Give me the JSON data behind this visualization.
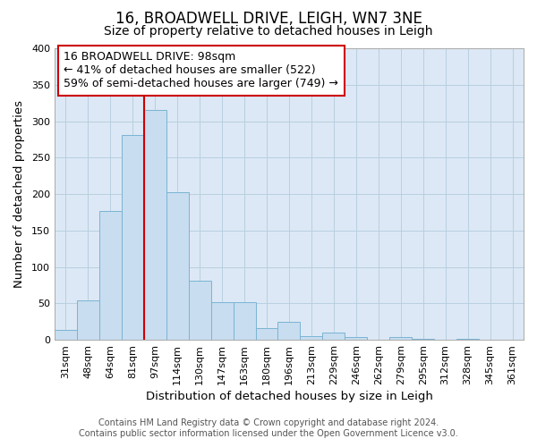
{
  "title": "16, BROADWELL DRIVE, LEIGH, WN7 3NE",
  "subtitle": "Size of property relative to detached houses in Leigh",
  "xlabel": "Distribution of detached houses by size in Leigh",
  "ylabel": "Number of detached properties",
  "categories": [
    "31sqm",
    "48sqm",
    "64sqm",
    "81sqm",
    "97sqm",
    "114sqm",
    "130sqm",
    "147sqm",
    "163sqm",
    "180sqm",
    "196sqm",
    "213sqm",
    "229sqm",
    "246sqm",
    "262sqm",
    "279sqm",
    "295sqm",
    "312sqm",
    "328sqm",
    "345sqm",
    "361sqm"
  ],
  "values": [
    13,
    54,
    177,
    281,
    315,
    203,
    81,
    51,
    51,
    16,
    25,
    5,
    10,
    4,
    0,
    4,
    1,
    0,
    1,
    0,
    0
  ],
  "bar_color": "#c8ddef",
  "bar_edge_color": "#7ab4d4",
  "vline_color": "#cc0000",
  "vline_x_index": 4,
  "annotation_text": "16 BROADWELL DRIVE: 98sqm\n← 41% of detached houses are smaller (522)\n59% of semi-detached houses are larger (749) →",
  "annotation_box_color": "#ffffff",
  "annotation_box_edge": "#cc0000",
  "ylim": [
    0,
    400
  ],
  "yticks": [
    0,
    50,
    100,
    150,
    200,
    250,
    300,
    350,
    400
  ],
  "background_color": "#ffffff",
  "plot_bg_color": "#dce8f5",
  "grid_color": "#b8cfe0",
  "footer": "Contains HM Land Registry data © Crown copyright and database right 2024.\nContains public sector information licensed under the Open Government Licence v3.0.",
  "title_fontsize": 12,
  "subtitle_fontsize": 10,
  "axis_label_fontsize": 9.5,
  "tick_fontsize": 8,
  "annotation_fontsize": 9,
  "footer_fontsize": 7
}
